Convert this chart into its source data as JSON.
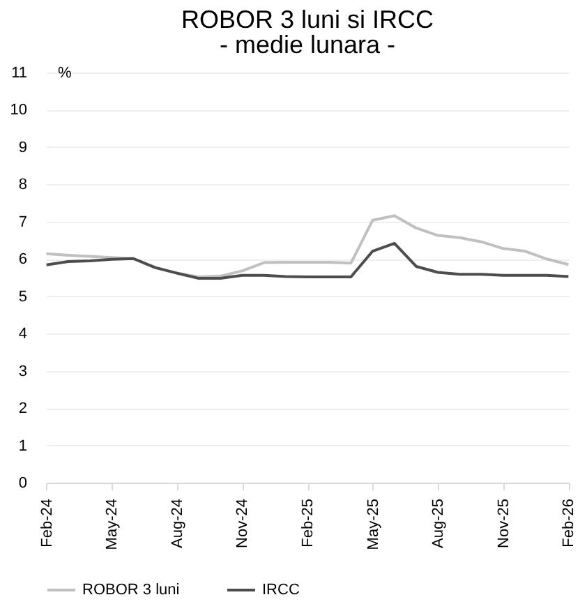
{
  "chart_data": {
    "type": "line",
    "title": "ROBOR 3 luni si IRCC",
    "subtitle": "- medie lunara -",
    "ylabel": "%",
    "categories": [
      "Feb-24",
      null,
      null,
      "May-24",
      null,
      null,
      "Aug-24",
      null,
      null,
      "Nov-24",
      null,
      null,
      "Feb-25",
      null,
      null,
      "May-25",
      null,
      null,
      "Aug-25",
      null,
      null,
      "Nov-25",
      null,
      null,
      "Feb-26"
    ],
    "series": [
      {
        "name": "ROBOR 3 luni",
        "color": "#c0c0c0",
        "values": [
          6.14,
          6.1,
          6.07,
          6.04,
          6.01,
          5.77,
          5.62,
          5.52,
          5.54,
          5.68,
          5.9,
          5.91,
          5.91,
          5.91,
          5.89,
          7.04,
          7.16,
          6.83,
          6.63,
          6.57,
          6.46,
          6.28,
          6.21,
          6.0,
          5.85
        ]
      },
      {
        "name": "IRCC",
        "color": "#4d4d4d",
        "values": [
          5.84,
          5.93,
          5.95,
          5.99,
          6.01,
          5.77,
          5.62,
          5.48,
          5.48,
          5.56,
          5.56,
          5.53,
          5.52,
          5.52,
          5.52,
          6.21,
          6.42,
          5.8,
          5.64,
          5.59,
          5.59,
          5.56,
          5.56,
          5.56,
          5.53
        ]
      }
    ],
    "ylim": [
      0,
      11
    ],
    "yticks": [
      0,
      1,
      2,
      3,
      4,
      5,
      6,
      7,
      8,
      9,
      10,
      11
    ],
    "grid": "y",
    "legend": "bottom",
    "line_style": "solid"
  }
}
